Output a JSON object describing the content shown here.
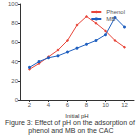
{
  "chart_data": {
    "type": "line",
    "title": "Figure 3: Effect of pH on the adsorption of phenol and MB on the CAC",
    "x_label": "Initial pH",
    "x": [
      2,
      3,
      4,
      5,
      6,
      7,
      8,
      9,
      10,
      11,
      12
    ],
    "series": [
      {
        "name": "Phenol",
        "color": "#e8463a",
        "marker": "diamond",
        "values": [
          32,
          38,
          45,
          52,
          62,
          78,
          87,
          80,
          72,
          62,
          55
        ]
      },
      {
        "name": "MB",
        "color": "#1f5fbf",
        "marker": "circle",
        "values": [
          34,
          40,
          44,
          46,
          50,
          54,
          58,
          62,
          68,
          86,
          76
        ]
      }
    ],
    "xlim": [
      1,
      13
    ],
    "xticks": [
      2,
      4,
      6,
      8,
      10,
      12
    ],
    "ylim": [
      0,
      100
    ],
    "yticks": [
      0,
      20,
      40,
      60,
      80,
      100
    ],
    "legend": "top-right",
    "grid": false
  }
}
